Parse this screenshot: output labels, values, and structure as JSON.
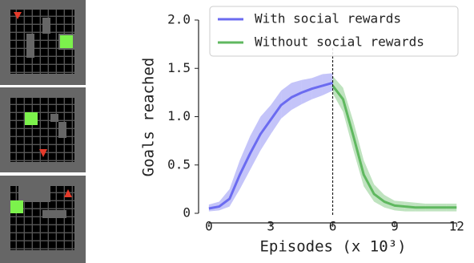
{
  "chart_data": {
    "type": "line",
    "x_label": "Episodes (x 10³)",
    "y_label": "Goals reached",
    "xlim": [
      -0.5,
      12.3
    ],
    "ylim": [
      0,
      2.0
    ],
    "xticks": [
      0,
      3,
      6,
      9,
      12
    ],
    "yticks": [
      0,
      0.5,
      {
        "value": 1,
        "label": "1.0"
      },
      1.5,
      {
        "value": 2,
        "label": "2.0"
      }
    ],
    "vline": 6,
    "legend": "upper right",
    "series": [
      {
        "name": "With social rewards",
        "color": "#6b6bf0",
        "x": [
          0,
          0.5,
          1,
          1.5,
          2,
          2.5,
          3,
          3.5,
          4,
          4.5,
          5,
          5.5,
          6
        ],
        "values": [
          0.05,
          0.07,
          0.15,
          0.4,
          0.62,
          0.82,
          0.97,
          1.12,
          1.2,
          1.25,
          1.29,
          1.32,
          1.35
        ],
        "lower": [
          0.02,
          0.03,
          0.07,
          0.25,
          0.45,
          0.65,
          0.82,
          0.98,
          1.07,
          1.13,
          1.18,
          1.22,
          1.27
        ],
        "upper": [
          0.09,
          0.12,
          0.25,
          0.55,
          0.8,
          1.0,
          1.12,
          1.27,
          1.35,
          1.38,
          1.4,
          1.44,
          1.45
        ]
      },
      {
        "name": "Without social rewards",
        "color": "#5fb85f",
        "x": [
          6,
          6.5,
          7,
          7.5,
          8,
          8.5,
          9,
          9.5,
          10,
          10.5,
          11,
          11.5,
          12
        ],
        "values": [
          1.32,
          1.18,
          0.8,
          0.4,
          0.2,
          0.12,
          0.08,
          0.07,
          0.06,
          0.06,
          0.06,
          0.06,
          0.06
        ],
        "lower": [
          1.24,
          1.05,
          0.65,
          0.28,
          0.12,
          0.06,
          0.03,
          0.02,
          0.02,
          0.02,
          0.02,
          0.02,
          0.02
        ],
        "upper": [
          1.42,
          1.3,
          0.95,
          0.55,
          0.3,
          0.19,
          0.13,
          0.12,
          0.11,
          0.1,
          0.1,
          0.1,
          0.1
        ]
      }
    ]
  }
}
